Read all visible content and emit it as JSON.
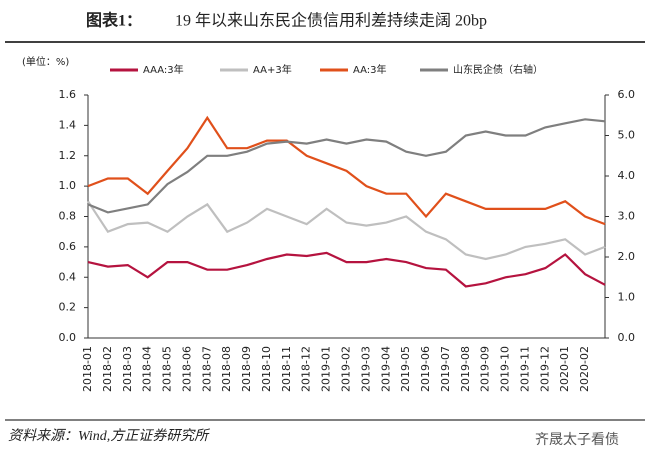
{
  "chart_data": {
    "type": "line",
    "figure_label": "图表1：",
    "title": "19 年以来山东民企债信用利差持续走阔 20bp",
    "unit_label": "(单位：%)",
    "source": "资料来源：Wind,方正证券研究所",
    "watermark": "齐晟太子看债",
    "categories": [
      "2018-01",
      "2018-02",
      "2018-03",
      "2018-04",
      "2018-05",
      "2018-06",
      "2018-07",
      "2018-08",
      "2018-09",
      "2018-10",
      "2018-11",
      "2018-12",
      "2019-01",
      "2019-02",
      "2019-03",
      "2019-04",
      "2019-05",
      "2019-06",
      "2019-07",
      "2019-08",
      "2019-09",
      "2019-10",
      "2019-11",
      "2019-12",
      "2020-01",
      "2020-02",
      null
    ],
    "series": [
      {
        "name": "AAA:3年",
        "color": "#b5133f",
        "values": [
          0.5,
          0.47,
          0.48,
          0.4,
          0.5,
          0.5,
          0.45,
          0.45,
          0.48,
          0.52,
          0.55,
          0.54,
          0.56,
          0.5,
          0.5,
          0.52,
          0.5,
          0.46,
          0.45,
          0.34,
          0.36,
          0.4,
          0.42,
          0.46,
          0.55,
          0.42,
          0.35
        ]
      },
      {
        "name": "AA+3年",
        "color": "#bfbfbf",
        "values": [
          0.9,
          0.7,
          0.75,
          0.76,
          0.7,
          0.8,
          0.88,
          0.7,
          0.76,
          0.85,
          0.8,
          0.75,
          0.85,
          0.76,
          0.74,
          0.76,
          0.8,
          0.7,
          0.65,
          0.55,
          0.52,
          0.55,
          0.6,
          0.62,
          0.65,
          0.55,
          0.6
        ]
      },
      {
        "name": "AA:3年",
        "color": "#e0501b",
        "values": [
          1.0,
          1.05,
          1.05,
          0.95,
          1.1,
          1.25,
          1.45,
          1.25,
          1.25,
          1.3,
          1.3,
          1.2,
          1.15,
          1.1,
          1.0,
          0.95,
          0.95,
          0.8,
          0.95,
          0.9,
          0.85,
          0.85,
          0.85,
          0.85,
          0.9,
          0.8,
          0.75
        ]
      },
      {
        "name": "山东民企债（右轴）",
        "color": "#7f7f7f",
        "axis": "y2",
        "values": [
          3.3,
          3.1,
          3.2,
          3.3,
          3.8,
          4.1,
          4.5,
          4.5,
          4.6,
          4.8,
          4.85,
          4.8,
          4.9,
          4.8,
          4.9,
          4.85,
          4.6,
          4.5,
          4.6,
          5.0,
          5.1,
          5.0,
          5.0,
          5.2,
          5.3,
          5.4,
          5.35
        ]
      }
    ],
    "ylim": [
      0,
      1.6
    ],
    "yticks": [
      {
        "value": 0,
        "label": "0.0"
      },
      0.2,
      0.4,
      0.6,
      0.8,
      {
        "value": 1,
        "label": "1.0"
      },
      1.2,
      1.4,
      1.6
    ],
    "y2lim": [
      0,
      6
    ],
    "y2ticks": [
      {
        "value": 0,
        "label": "0.0"
      },
      {
        "value": 1,
        "label": "1.0"
      },
      {
        "value": 2,
        "label": "2.0"
      },
      {
        "value": 3,
        "label": "3.0"
      },
      {
        "value": 4,
        "label": "4.0"
      },
      {
        "value": 5,
        "label": "5.0"
      },
      {
        "value": 6,
        "label": "6.0"
      }
    ],
    "grid": false
  }
}
